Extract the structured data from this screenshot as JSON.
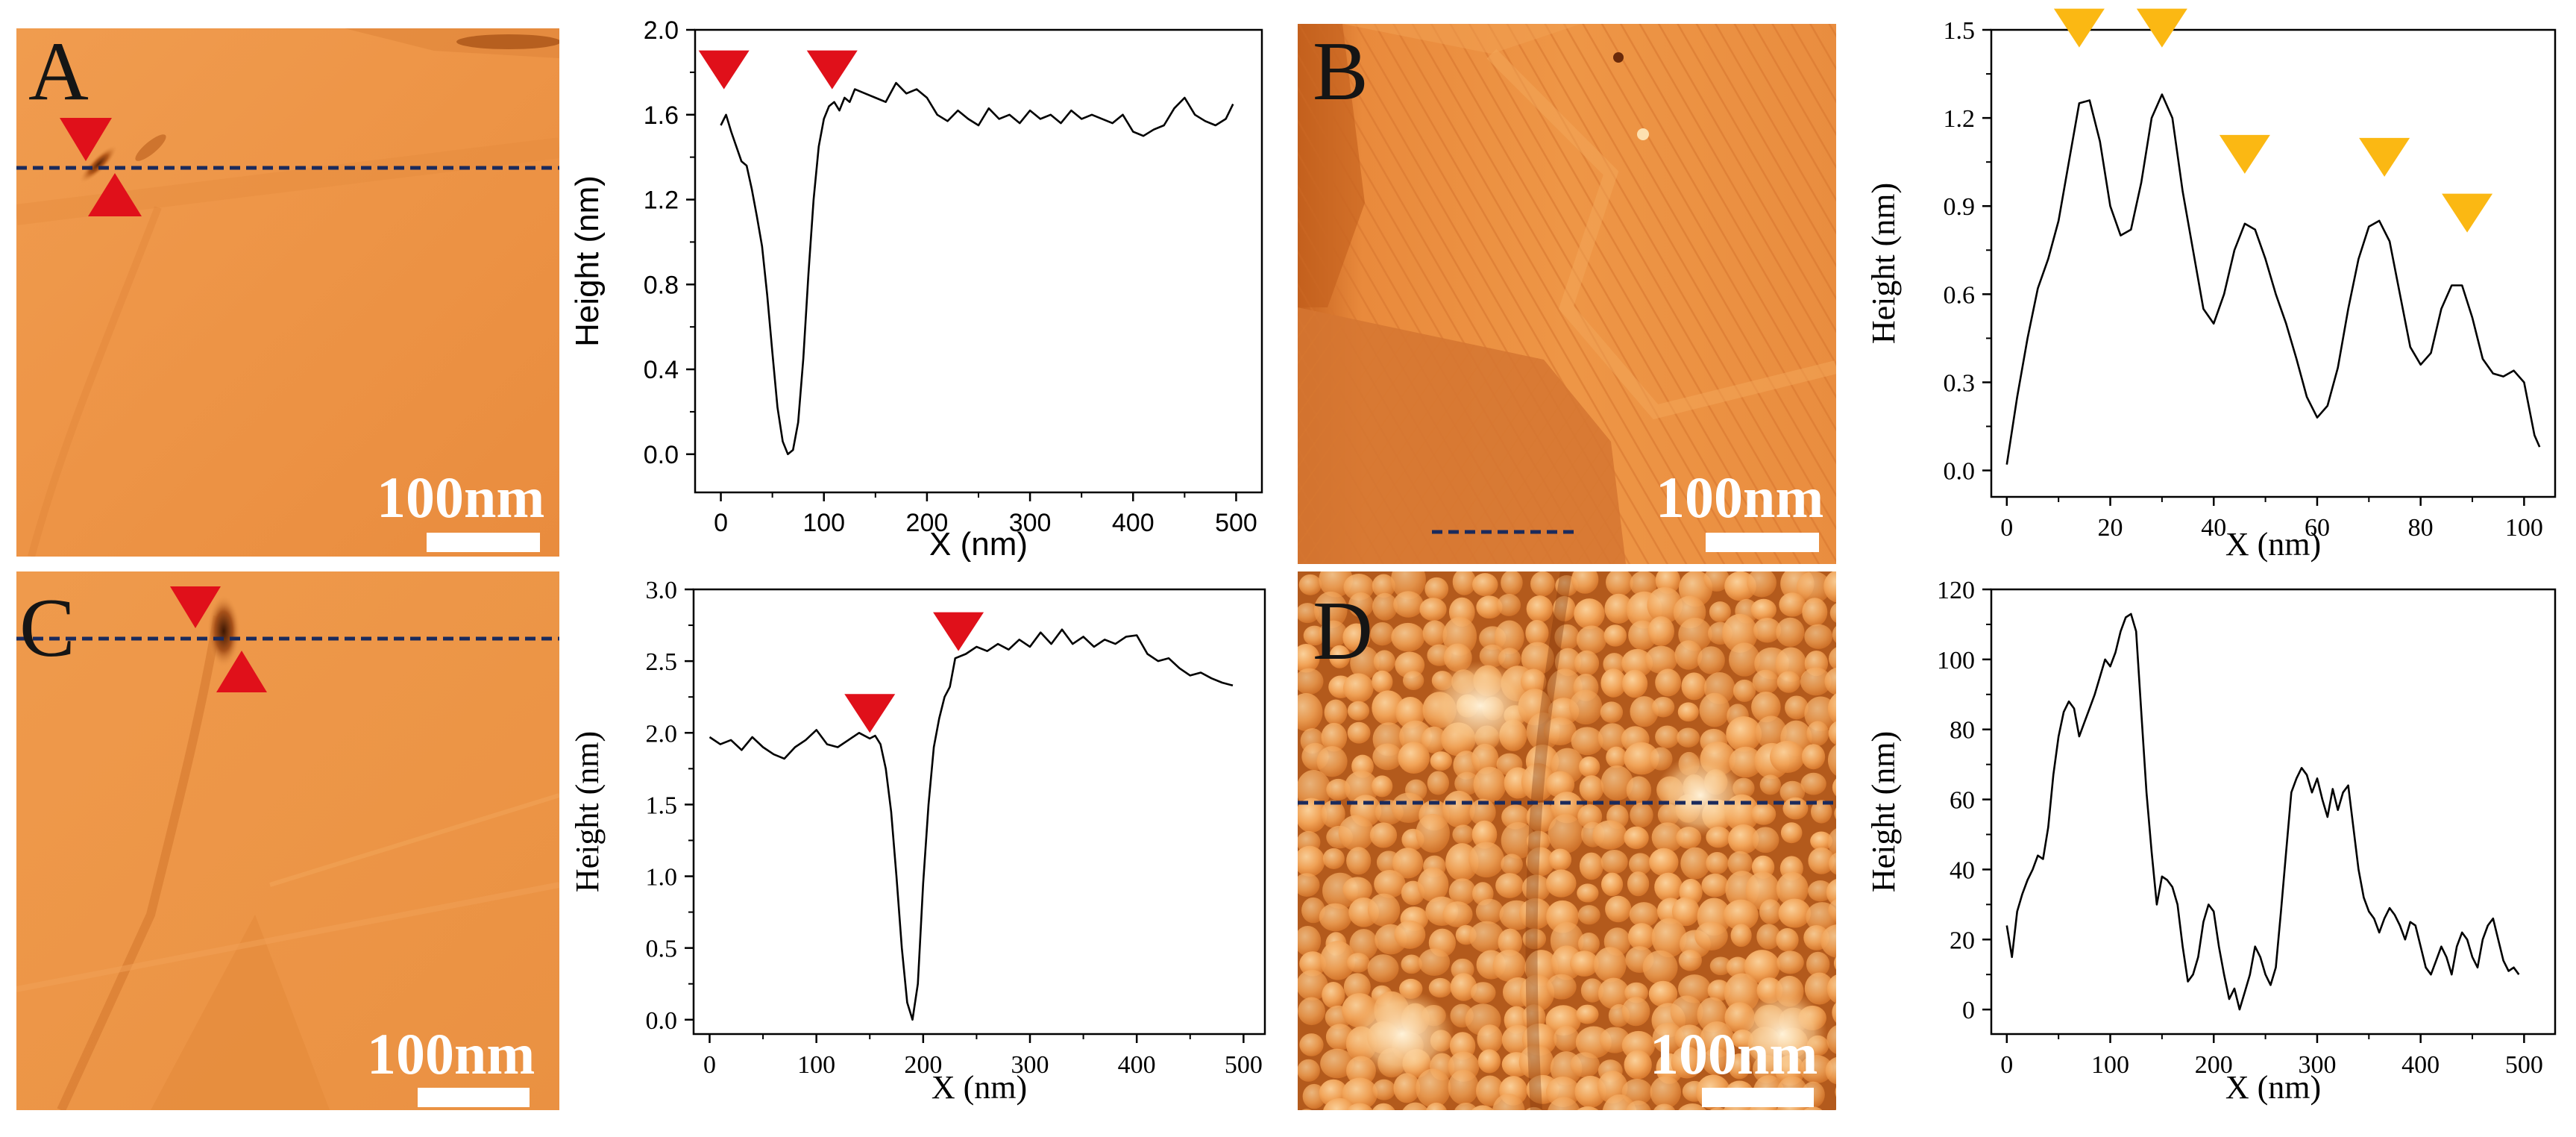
{
  "figure": {
    "panels": [
      {
        "letter": "A",
        "scale_label": "100nm"
      },
      {
        "letter": "B",
        "scale_label": "100nm"
      },
      {
        "letter": "C",
        "scale_label": "100nm"
      },
      {
        "letter": "D",
        "scale_label": "100nm"
      }
    ]
  },
  "colors": {
    "line_marker": "#1a2a5c",
    "red_marker": "#e0101a",
    "yellow_marker": "#fbb813",
    "afm_light": "#f3a35a",
    "afm_dark": "#c8611b"
  },
  "chart_data": [
    {
      "id": "A",
      "type": "line",
      "xlabel": "X (nm)",
      "ylabel": "Height (nm)",
      "xlim": [
        -25,
        525
      ],
      "ylim": [
        -0.18,
        2.0
      ],
      "xticks": [
        0,
        100,
        200,
        300,
        400,
        500
      ],
      "yticks": [
        0.0,
        0.4,
        0.8,
        1.2,
        1.6,
        2.0
      ],
      "ytick_decimals": 1,
      "font": "sans",
      "markers": [
        {
          "x": 3,
          "y": 1.72,
          "dir": "down",
          "color": "red"
        },
        {
          "x": 108,
          "y": 1.72,
          "dir": "down",
          "color": "red"
        }
      ],
      "x": [
        0,
        5,
        10,
        15,
        20,
        25,
        30,
        35,
        40,
        45,
        50,
        55,
        60,
        65,
        70,
        75,
        80,
        85,
        90,
        95,
        100,
        105,
        110,
        115,
        120,
        125,
        130,
        140,
        150,
        160,
        170,
        180,
        190,
        200,
        210,
        220,
        230,
        240,
        250,
        260,
        270,
        280,
        290,
        300,
        310,
        320,
        330,
        340,
        350,
        360,
        370,
        380,
        390,
        400,
        410,
        420,
        430,
        440,
        450,
        460,
        470,
        480,
        490,
        497
      ],
      "y": [
        1.55,
        1.6,
        1.52,
        1.45,
        1.38,
        1.36,
        1.25,
        1.12,
        0.98,
        0.75,
        0.48,
        0.22,
        0.06,
        0.0,
        0.02,
        0.15,
        0.45,
        0.85,
        1.2,
        1.45,
        1.58,
        1.64,
        1.66,
        1.62,
        1.68,
        1.66,
        1.72,
        1.7,
        1.68,
        1.66,
        1.75,
        1.7,
        1.72,
        1.68,
        1.6,
        1.57,
        1.62,
        1.58,
        1.55,
        1.63,
        1.58,
        1.6,
        1.56,
        1.62,
        1.58,
        1.6,
        1.56,
        1.62,
        1.58,
        1.6,
        1.58,
        1.56,
        1.6,
        1.52,
        1.5,
        1.53,
        1.55,
        1.63,
        1.68,
        1.6,
        1.57,
        1.55,
        1.58,
        1.65
      ]
    },
    {
      "id": "B",
      "type": "line",
      "xlabel": "X (nm)",
      "ylabel": "Height (nm)",
      "xlim": [
        -3,
        106
      ],
      "ylim": [
        -0.09,
        1.5
      ],
      "xticks": [
        0,
        20,
        40,
        60,
        80,
        100
      ],
      "yticks": [
        0.0,
        0.3,
        0.6,
        0.9,
        1.2,
        1.5
      ],
      "ytick_decimals": 1,
      "font": "serif",
      "markers": [
        {
          "x": 14,
          "y": 1.44,
          "dir": "down",
          "color": "yellow"
        },
        {
          "x": 30,
          "y": 1.44,
          "dir": "down",
          "color": "yellow"
        },
        {
          "x": 46,
          "y": 1.01,
          "dir": "down",
          "color": "yellow"
        },
        {
          "x": 73,
          "y": 1.0,
          "dir": "down",
          "color": "yellow"
        },
        {
          "x": 89,
          "y": 0.81,
          "dir": "down",
          "color": "yellow"
        }
      ],
      "x": [
        0,
        2,
        4,
        6,
        8,
        10,
        12,
        14,
        16,
        18,
        20,
        22,
        24,
        26,
        28,
        30,
        32,
        34,
        36,
        38,
        40,
        42,
        44,
        46,
        48,
        50,
        52,
        54,
        56,
        58,
        60,
        62,
        64,
        66,
        68,
        70,
        72,
        74,
        76,
        78,
        80,
        82,
        84,
        86,
        88,
        90,
        92,
        94,
        96,
        98,
        100,
        102,
        103
      ],
      "y": [
        0.02,
        0.25,
        0.45,
        0.62,
        0.72,
        0.85,
        1.05,
        1.25,
        1.26,
        1.12,
        0.9,
        0.8,
        0.82,
        0.98,
        1.2,
        1.28,
        1.2,
        0.95,
        0.75,
        0.55,
        0.5,
        0.6,
        0.75,
        0.84,
        0.82,
        0.72,
        0.6,
        0.5,
        0.38,
        0.25,
        0.18,
        0.22,
        0.35,
        0.55,
        0.72,
        0.83,
        0.85,
        0.78,
        0.6,
        0.42,
        0.36,
        0.4,
        0.55,
        0.63,
        0.63,
        0.52,
        0.38,
        0.33,
        0.32,
        0.34,
        0.3,
        0.12,
        0.08
      ]
    },
    {
      "id": "C",
      "type": "line",
      "xlabel": "X (nm)",
      "ylabel": "Height (nm)",
      "xlim": [
        -15,
        520
      ],
      "ylim": [
        -0.1,
        3.0
      ],
      "xticks": [
        0,
        100,
        200,
        300,
        400,
        500
      ],
      "yticks": [
        0.0,
        0.5,
        1.0,
        1.5,
        2.0,
        2.5,
        3.0
      ],
      "ytick_decimals": 1,
      "font": "serif",
      "markers": [
        {
          "x": 150,
          "y": 2.0,
          "dir": "down",
          "color": "red"
        },
        {
          "x": 233,
          "y": 2.57,
          "dir": "down",
          "color": "red"
        }
      ],
      "x": [
        0,
        10,
        20,
        30,
        40,
        50,
        60,
        70,
        80,
        90,
        100,
        110,
        120,
        130,
        140,
        150,
        155,
        160,
        165,
        170,
        175,
        180,
        185,
        190,
        195,
        200,
        205,
        210,
        215,
        220,
        225,
        230,
        240,
        250,
        260,
        270,
        280,
        290,
        300,
        310,
        320,
        330,
        340,
        350,
        360,
        370,
        380,
        390,
        400,
        410,
        420,
        430,
        440,
        450,
        460,
        470,
        480,
        490
      ],
      "y": [
        1.97,
        1.92,
        1.95,
        1.88,
        1.97,
        1.9,
        1.85,
        1.82,
        1.9,
        1.95,
        2.02,
        1.92,
        1.9,
        1.95,
        2.0,
        1.96,
        1.98,
        1.92,
        1.75,
        1.45,
        1.0,
        0.5,
        0.12,
        0.0,
        0.25,
        0.95,
        1.5,
        1.9,
        2.1,
        2.25,
        2.32,
        2.52,
        2.55,
        2.6,
        2.57,
        2.62,
        2.58,
        2.65,
        2.6,
        2.7,
        2.62,
        2.72,
        2.62,
        2.67,
        2.6,
        2.65,
        2.62,
        2.67,
        2.68,
        2.55,
        2.5,
        2.52,
        2.45,
        2.4,
        2.42,
        2.38,
        2.35,
        2.33
      ]
    },
    {
      "id": "D",
      "type": "line",
      "xlabel": "X (nm)",
      "ylabel": "Height (nm)",
      "xlim": [
        -15,
        530
      ],
      "ylim": [
        -7,
        120
      ],
      "xticks": [
        0,
        100,
        200,
        300,
        400,
        500
      ],
      "yticks": [
        0,
        20,
        40,
        60,
        80,
        100,
        120
      ],
      "ytick_decimals": 0,
      "font": "serif",
      "markers": [],
      "x": [
        0,
        5,
        10,
        15,
        20,
        25,
        30,
        35,
        40,
        45,
        50,
        55,
        60,
        65,
        70,
        75,
        80,
        85,
        90,
        95,
        100,
        105,
        110,
        115,
        120,
        125,
        130,
        135,
        140,
        145,
        150,
        155,
        160,
        165,
        170,
        175,
        180,
        185,
        190,
        195,
        200,
        205,
        210,
        215,
        220,
        225,
        230,
        235,
        240,
        245,
        250,
        255,
        260,
        265,
        270,
        275,
        280,
        285,
        290,
        295,
        300,
        305,
        310,
        315,
        320,
        325,
        330,
        335,
        340,
        345,
        350,
        355,
        360,
        365,
        370,
        375,
        380,
        385,
        390,
        395,
        400,
        405,
        410,
        415,
        420,
        425,
        430,
        435,
        440,
        445,
        450,
        455,
        460,
        465,
        470,
        475,
        480,
        485,
        490,
        495
      ],
      "y": [
        24,
        15,
        28,
        33,
        37,
        40,
        44,
        43,
        52,
        67,
        78,
        85,
        88,
        86,
        78,
        82,
        86,
        90,
        95,
        100,
        98,
        102,
        108,
        112,
        113,
        108,
        85,
        62,
        45,
        30,
        38,
        37,
        35,
        30,
        18,
        8,
        10,
        15,
        25,
        30,
        28,
        18,
        10,
        3,
        6,
        0,
        5,
        10,
        18,
        15,
        10,
        7,
        12,
        28,
        45,
        62,
        66,
        69,
        67,
        62,
        66,
        60,
        55,
        63,
        57,
        62,
        64,
        52,
        40,
        32,
        28,
        26,
        22,
        26,
        29,
        27,
        24,
        20,
        25,
        24,
        18,
        12,
        10,
        14,
        18,
        15,
        10,
        18,
        22,
        20,
        15,
        12,
        20,
        24,
        26,
        20,
        14,
        11,
        12,
        10
      ]
    }
  ]
}
